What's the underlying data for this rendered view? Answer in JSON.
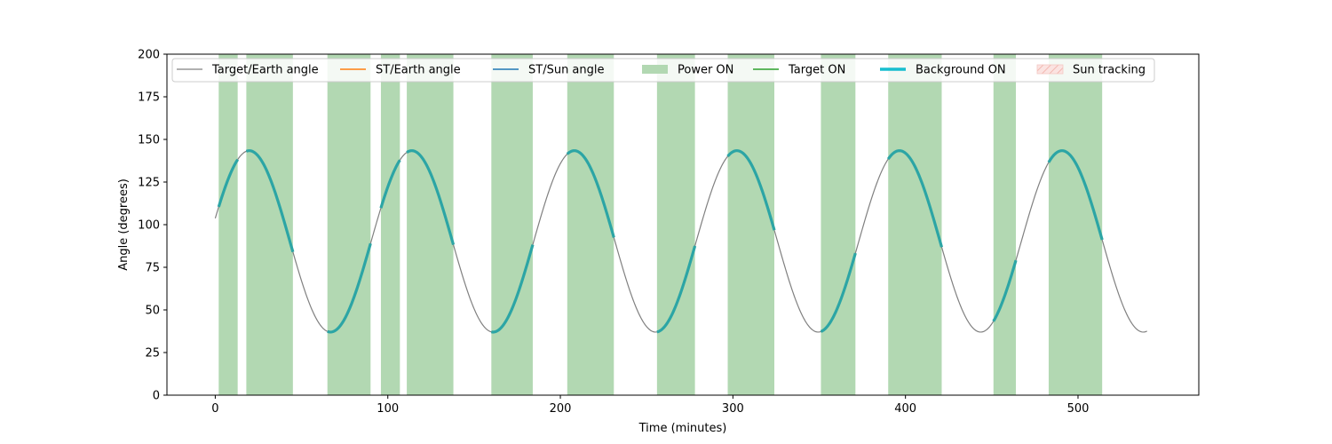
{
  "chart_data": {
    "type": "line",
    "title": "",
    "xlabel": "Time (minutes)",
    "ylabel": "Angle (degrees)",
    "xlim": [
      -28,
      570
    ],
    "ylim": [
      0,
      200
    ],
    "xticks": [
      0,
      100,
      200,
      300,
      400,
      500
    ],
    "yticks": [
      0,
      25,
      50,
      75,
      100,
      125,
      150,
      175,
      200
    ],
    "grid": false,
    "legend_position": "top",
    "colors": {
      "target_earth": "#808080",
      "st_earth": "#ff7f0e",
      "st_sun": "#1f77b4",
      "power_on": "#b2d8b2",
      "target_on": "#2ca02c",
      "background_on": "#17becf",
      "background_drawn": "#2ca5a5",
      "sun_tracking": "#f4c8c4"
    },
    "signal": {
      "x_start": 0,
      "x_end": 540,
      "mean": 90.2,
      "amplitude": 53.2,
      "period_minutes": 94.2,
      "peak_at_minute": 19.7
    },
    "series": [
      {
        "name": "Target/Earth angle",
        "style": "thin-line"
      },
      {
        "name": "ST/Earth angle",
        "style": "line"
      },
      {
        "name": "ST/Sun angle",
        "style": "line"
      },
      {
        "name": "Power ON",
        "style": "band"
      },
      {
        "name": "Target ON",
        "style": "line"
      },
      {
        "name": "Background ON",
        "style": "thick-line"
      },
      {
        "name": "Sun tracking",
        "style": "hatched-band"
      }
    ],
    "power_on_intervals": [
      [
        2,
        13
      ],
      [
        18,
        45
      ],
      [
        65,
        90
      ],
      [
        96,
        107
      ],
      [
        111,
        138
      ],
      [
        160,
        184
      ],
      [
        204,
        231
      ],
      [
        256,
        278
      ],
      [
        297,
        324
      ],
      [
        351,
        371
      ],
      [
        390,
        421
      ],
      [
        451,
        464
      ],
      [
        483,
        514
      ]
    ],
    "background_on_intervals": [
      [
        2,
        13
      ],
      [
        18,
        45
      ],
      [
        65,
        90
      ],
      [
        96,
        107
      ],
      [
        111,
        138
      ],
      [
        160,
        184
      ],
      [
        204,
        231
      ],
      [
        256,
        278
      ],
      [
        297,
        324
      ],
      [
        351,
        371
      ],
      [
        390,
        421
      ],
      [
        451,
        464
      ],
      [
        483,
        514
      ]
    ]
  }
}
